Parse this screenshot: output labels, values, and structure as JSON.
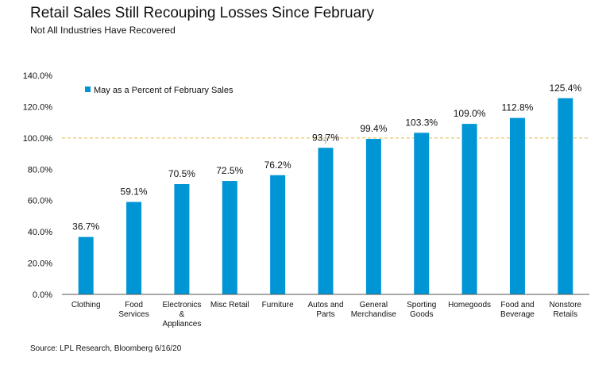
{
  "title": "Retail Sales Still Recouping Losses Since February",
  "subtitle": "Not All Industries Have Recovered",
  "source": "Source: LPL Research, Bloomberg 6/16/20",
  "chart_data": {
    "type": "bar",
    "categories": [
      [
        "Clothing"
      ],
      [
        "Food",
        "Services"
      ],
      [
        "Electronics",
        "&",
        "Appliances"
      ],
      [
        "Misc Retail"
      ],
      [
        "Furniture"
      ],
      [
        "Autos and",
        "Parts"
      ],
      [
        "General",
        "Merchandise"
      ],
      [
        "Sporting",
        "Goods"
      ],
      [
        "Homegoods"
      ],
      [
        "Food and",
        "Beverage"
      ],
      [
        "Nonstore",
        "Retails"
      ]
    ],
    "series": [
      {
        "name": "May as a Percent of February Sales",
        "values": [
          36.7,
          59.1,
          70.5,
          72.5,
          76.2,
          93.7,
          99.4,
          103.3,
          109.0,
          112.8,
          125.4
        ],
        "labels": [
          "36.7%",
          "59.1%",
          "70.5%",
          "72.5%",
          "76.2%",
          "93.7%",
          "99.4%",
          "103.3%",
          "109.0%",
          "112.8%",
          "125.4%"
        ],
        "color": "#0096d6"
      }
    ],
    "yticks": [
      "0.0%",
      "20.0%",
      "40.0%",
      "60.0%",
      "80.0%",
      "100.0%",
      "120.0%",
      "140.0%"
    ],
    "ylim": [
      0,
      140
    ],
    "reference_line": {
      "value": 100,
      "color": "#e8b84a",
      "style": "dashed"
    },
    "legend_position": "top-left",
    "grid": false
  }
}
